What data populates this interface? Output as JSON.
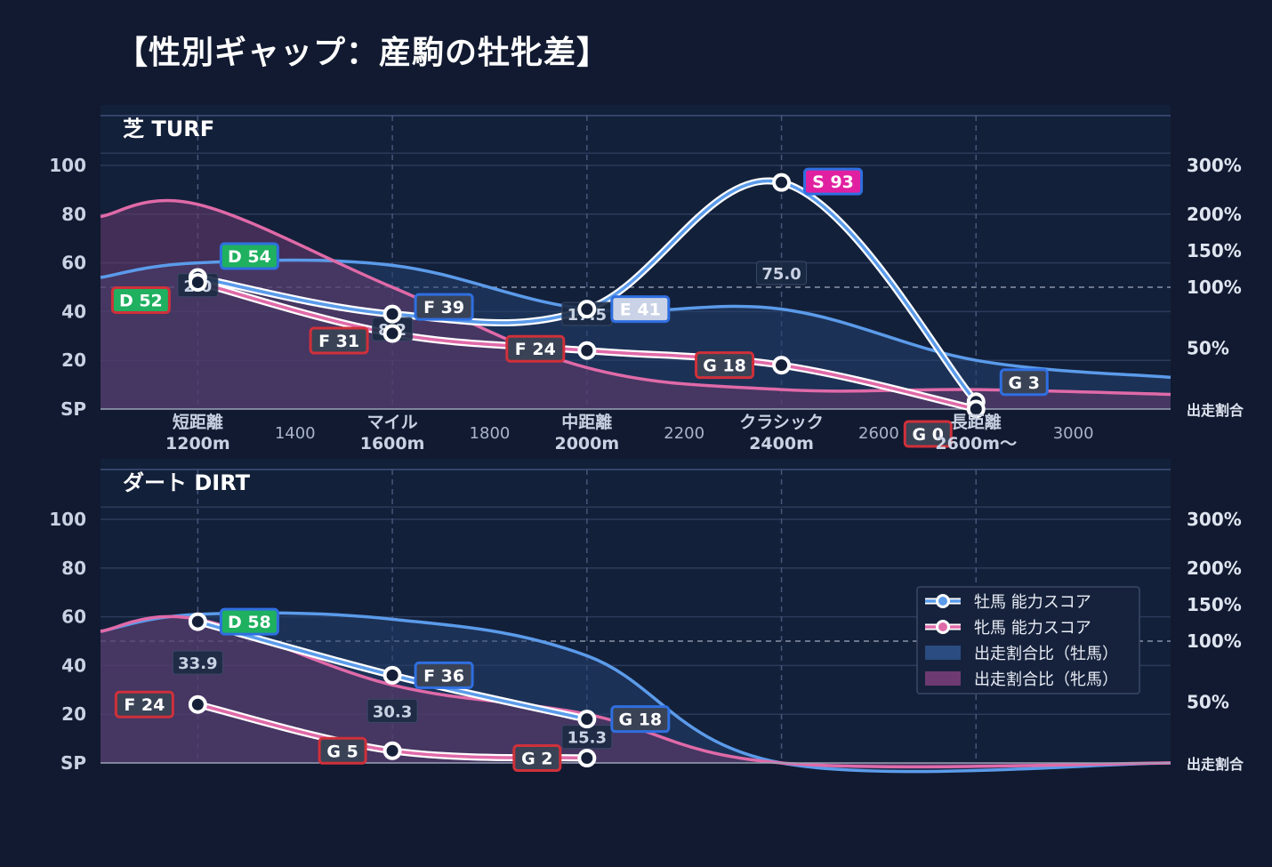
{
  "title": "【性別ギャップ：産駒の牡牝差】",
  "colors": {
    "background": "#111a30",
    "plot_bg": "#13203a",
    "male": "#5b9bea",
    "female": "#e06aa8",
    "grade_S": "#e020a0",
    "grade_D": "#1fb060",
    "grade_E": "#c9d2e6",
    "grade_F": "#3a4356",
    "grade_G": "#3a4356",
    "border_male": "#2f6fe0",
    "border_female": "#d0303a"
  },
  "chart_data": [
    {
      "type": "line",
      "panel_label": "芝 TURF",
      "xlim": [
        1000,
        3200
      ],
      "ylim": [
        0,
        100
      ],
      "y_ticks": [
        "SP",
        "20",
        "40",
        "60",
        "80",
        "100"
      ],
      "y2_ticks": [
        "出走割合",
        "50%",
        "100%",
        "150%",
        "200%",
        "300%"
      ],
      "x_ticks_major": [
        {
          "x": 1200,
          "line1": "短距離",
          "line2": "1200m"
        },
        {
          "x": 1600,
          "line1": "マイル",
          "line2": "1600m"
        },
        {
          "x": 2000,
          "line1": "中距離",
          "line2": "2000m"
        },
        {
          "x": 2400,
          "line1": "クラシック",
          "line2": "2400m"
        },
        {
          "x": 2800,
          "line1": "長距離",
          "line2": "2600m〜"
        }
      ],
      "x_ticks_minor": [
        {
          "x": 1400,
          "label": "1400"
        },
        {
          "x": 1800,
          "label": "1800"
        },
        {
          "x": 2200,
          "label": "2200"
        },
        {
          "x": 2600,
          "label": "2600"
        },
        {
          "x": 3000,
          "label": "3000"
        }
      ],
      "series": [
        {
          "name": "牡馬 能力スコア",
          "points": [
            {
              "x": 1200,
              "y": 54,
              "grade": "D 54"
            },
            {
              "x": 1600,
              "y": 39,
              "grade": "F 39"
            },
            {
              "x": 2000,
              "y": 41,
              "grade": "E 41"
            },
            {
              "x": 2400,
              "y": 93,
              "grade": "S 93"
            },
            {
              "x": 2800,
              "y": 3,
              "grade": "G 3"
            }
          ]
        },
        {
          "name": "牝馬 能力スコア",
          "points": [
            {
              "x": 1200,
              "y": 52,
              "grade": "D 52"
            },
            {
              "x": 1600,
              "y": 31,
              "grade": "F 31"
            },
            {
              "x": 2000,
              "y": 24,
              "grade": "F 24"
            },
            {
              "x": 2400,
              "y": 18,
              "grade": "G 18"
            },
            {
              "x": 2800,
              "y": 0,
              "grade": "G 0"
            }
          ]
        },
        {
          "name": "出走割合比（牡馬）",
          "points": [
            {
              "x": 1000,
              "y": 54
            },
            {
              "x": 1200,
              "y": 60
            },
            {
              "x": 1600,
              "y": 59
            },
            {
              "x": 2000,
              "y": 41
            },
            {
              "x": 2400,
              "y": 41
            },
            {
              "x": 2800,
              "y": 20
            },
            {
              "x": 3200,
              "y": 13
            }
          ]
        },
        {
          "name": "出走割合比（牝馬）",
          "points": [
            {
              "x": 1000,
              "y": 79
            },
            {
              "x": 1200,
              "y": 84
            },
            {
              "x": 1600,
              "y": 50
            },
            {
              "x": 2000,
              "y": 17
            },
            {
              "x": 2400,
              "y": 8
            },
            {
              "x": 2800,
              "y": 8
            },
            {
              "x": 3200,
              "y": 6
            }
          ]
        }
      ],
      "gap_labels": [
        {
          "x": 1200,
          "text": "2.0"
        },
        {
          "x": 1600,
          "text": "8.2"
        },
        {
          "x": 2000,
          "text": "17.5"
        },
        {
          "x": 2400,
          "text": "75.0"
        }
      ]
    },
    {
      "type": "line",
      "panel_label": "ダート DIRT",
      "xlim": [
        1000,
        3200
      ],
      "ylim": [
        0,
        100
      ],
      "y_ticks": [
        "SP",
        "20",
        "40",
        "60",
        "80",
        "100"
      ],
      "y2_ticks": [
        "出走割合",
        "50%",
        "100%",
        "150%",
        "200%",
        "300%"
      ],
      "series": [
        {
          "name": "牡馬 能力スコア",
          "points": [
            {
              "x": 1200,
              "y": 58,
              "grade": "D 58"
            },
            {
              "x": 1600,
              "y": 36,
              "grade": "F 36"
            },
            {
              "x": 2000,
              "y": 18,
              "grade": "G 18"
            }
          ]
        },
        {
          "name": "牝馬 能力スコア",
          "points": [
            {
              "x": 1200,
              "y": 24,
              "grade": "F 24"
            },
            {
              "x": 1600,
              "y": 5,
              "grade": "G 5"
            },
            {
              "x": 2000,
              "y": 2,
              "grade": "G 2"
            }
          ]
        },
        {
          "name": "出走割合比（牡馬）",
          "points": [
            {
              "x": 1000,
              "y": 54
            },
            {
              "x": 1200,
              "y": 61
            },
            {
              "x": 1600,
              "y": 59
            },
            {
              "x": 2000,
              "y": 44
            },
            {
              "x": 2400,
              "y": 0
            },
            {
              "x": 3200,
              "y": 0
            }
          ]
        },
        {
          "name": "出走割合比（牝馬）",
          "points": [
            {
              "x": 1000,
              "y": 54
            },
            {
              "x": 1200,
              "y": 59
            },
            {
              "x": 1600,
              "y": 32
            },
            {
              "x": 2000,
              "y": 20
            },
            {
              "x": 2400,
              "y": 0
            },
            {
              "x": 3200,
              "y": 0
            }
          ]
        }
      ],
      "gap_labels": [
        {
          "x": 1200,
          "text": "33.9"
        },
        {
          "x": 1600,
          "text": "30.3"
        },
        {
          "x": 2000,
          "text": "15.3"
        }
      ]
    }
  ],
  "legend": {
    "position": "right",
    "items": [
      {
        "label": "牡馬 能力スコア",
        "kind": "line-male"
      },
      {
        "label": "牝馬 能力スコア",
        "kind": "line-female"
      },
      {
        "label": "出走割合比（牡馬）",
        "kind": "area-male"
      },
      {
        "label": "出走割合比（牝馬）",
        "kind": "area-female"
      }
    ]
  }
}
